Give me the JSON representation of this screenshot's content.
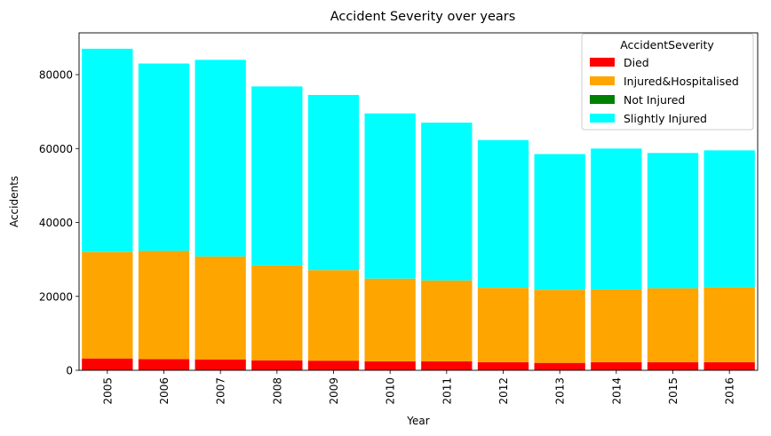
{
  "chart_data": {
    "type": "bar",
    "stacked": true,
    "title": "Accident Severity over years",
    "xlabel": "Year",
    "ylabel": "Accidents",
    "ylim": [
      0,
      91300
    ],
    "yticks": [
      0,
      20000,
      40000,
      60000,
      80000
    ],
    "categories": [
      "2005",
      "2006",
      "2007",
      "2008",
      "2009",
      "2010",
      "2011",
      "2012",
      "2013",
      "2014",
      "2015",
      "2016"
    ],
    "legend": {
      "title": "AccidentSeverity",
      "position": "top-right"
    },
    "series": [
      {
        "name": "Died",
        "color": "#ff0000",
        "values": [
          3200,
          3000,
          2950,
          2700,
          2600,
          2400,
          2400,
          2200,
          2000,
          2200,
          2200,
          2200
        ]
      },
      {
        "name": "Injured&Hospitalised",
        "color": "#ffa500",
        "values": [
          28800,
          29300,
          27850,
          25700,
          24500,
          22400,
          21900,
          20100,
          19800,
          19700,
          20000,
          20300
        ]
      },
      {
        "name": "Not Injured",
        "color": "#008000",
        "values": [
          0,
          0,
          0,
          0,
          0,
          0,
          0,
          0,
          0,
          0,
          0,
          0
        ]
      },
      {
        "name": "Slightly Injured",
        "color": "#00ffff",
        "values": [
          55000,
          50700,
          53200,
          48400,
          47400,
          44700,
          42700,
          40000,
          36700,
          38100,
          36600,
          37000
        ]
      }
    ],
    "grid": false
  }
}
